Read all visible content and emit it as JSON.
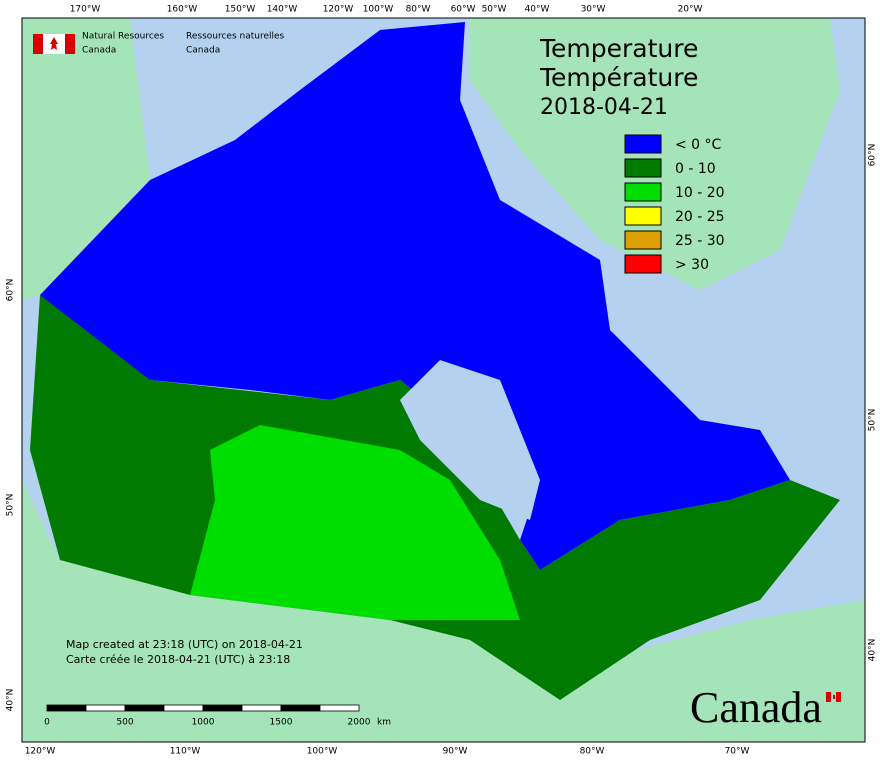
{
  "header": {
    "org_en": [
      "Natural Resources",
      "Canada"
    ],
    "org_fr": [
      "Ressources naturelles",
      "Canada"
    ]
  },
  "title": {
    "en": "Temperature",
    "fr": "Température",
    "date": "2018-04-21"
  },
  "legend": [
    {
      "label": "< 0 °C",
      "color": "#0000ff"
    },
    {
      "label": "0 - 10",
      "color": "#007a00"
    },
    {
      "label": "10 - 20",
      "color": "#00dd00"
    },
    {
      "label": "20 - 25",
      "color": "#ffff00"
    },
    {
      "label": "25 - 30",
      "color": "#dca000"
    },
    {
      "label": "> 30",
      "color": "#ff0000"
    }
  ],
  "graticule": {
    "top": [
      "170°W",
      "160°W",
      "150°W",
      "140°W",
      "120°W",
      "100°W",
      "80°W",
      "60°W",
      "50°W",
      "40°W",
      "30°W",
      "20°W"
    ],
    "bottom": [
      "120°W",
      "110°W",
      "100°W",
      "90°W",
      "80°W",
      "70°W"
    ],
    "left": [
      "60°N",
      "50°N",
      "40°N"
    ],
    "right": [
      "60°N",
      "50°N",
      "40°N"
    ]
  },
  "credits": [
    "Map created at 23:18 (UTC) on 2018-04-21",
    "Carte créée le 2018-04-21 (UTC) à 23:18"
  ],
  "scale": {
    "ticks": [
      "0",
      "500",
      "1000",
      "1500",
      "2000"
    ],
    "unit": "km"
  },
  "wordmark": "Canada"
}
